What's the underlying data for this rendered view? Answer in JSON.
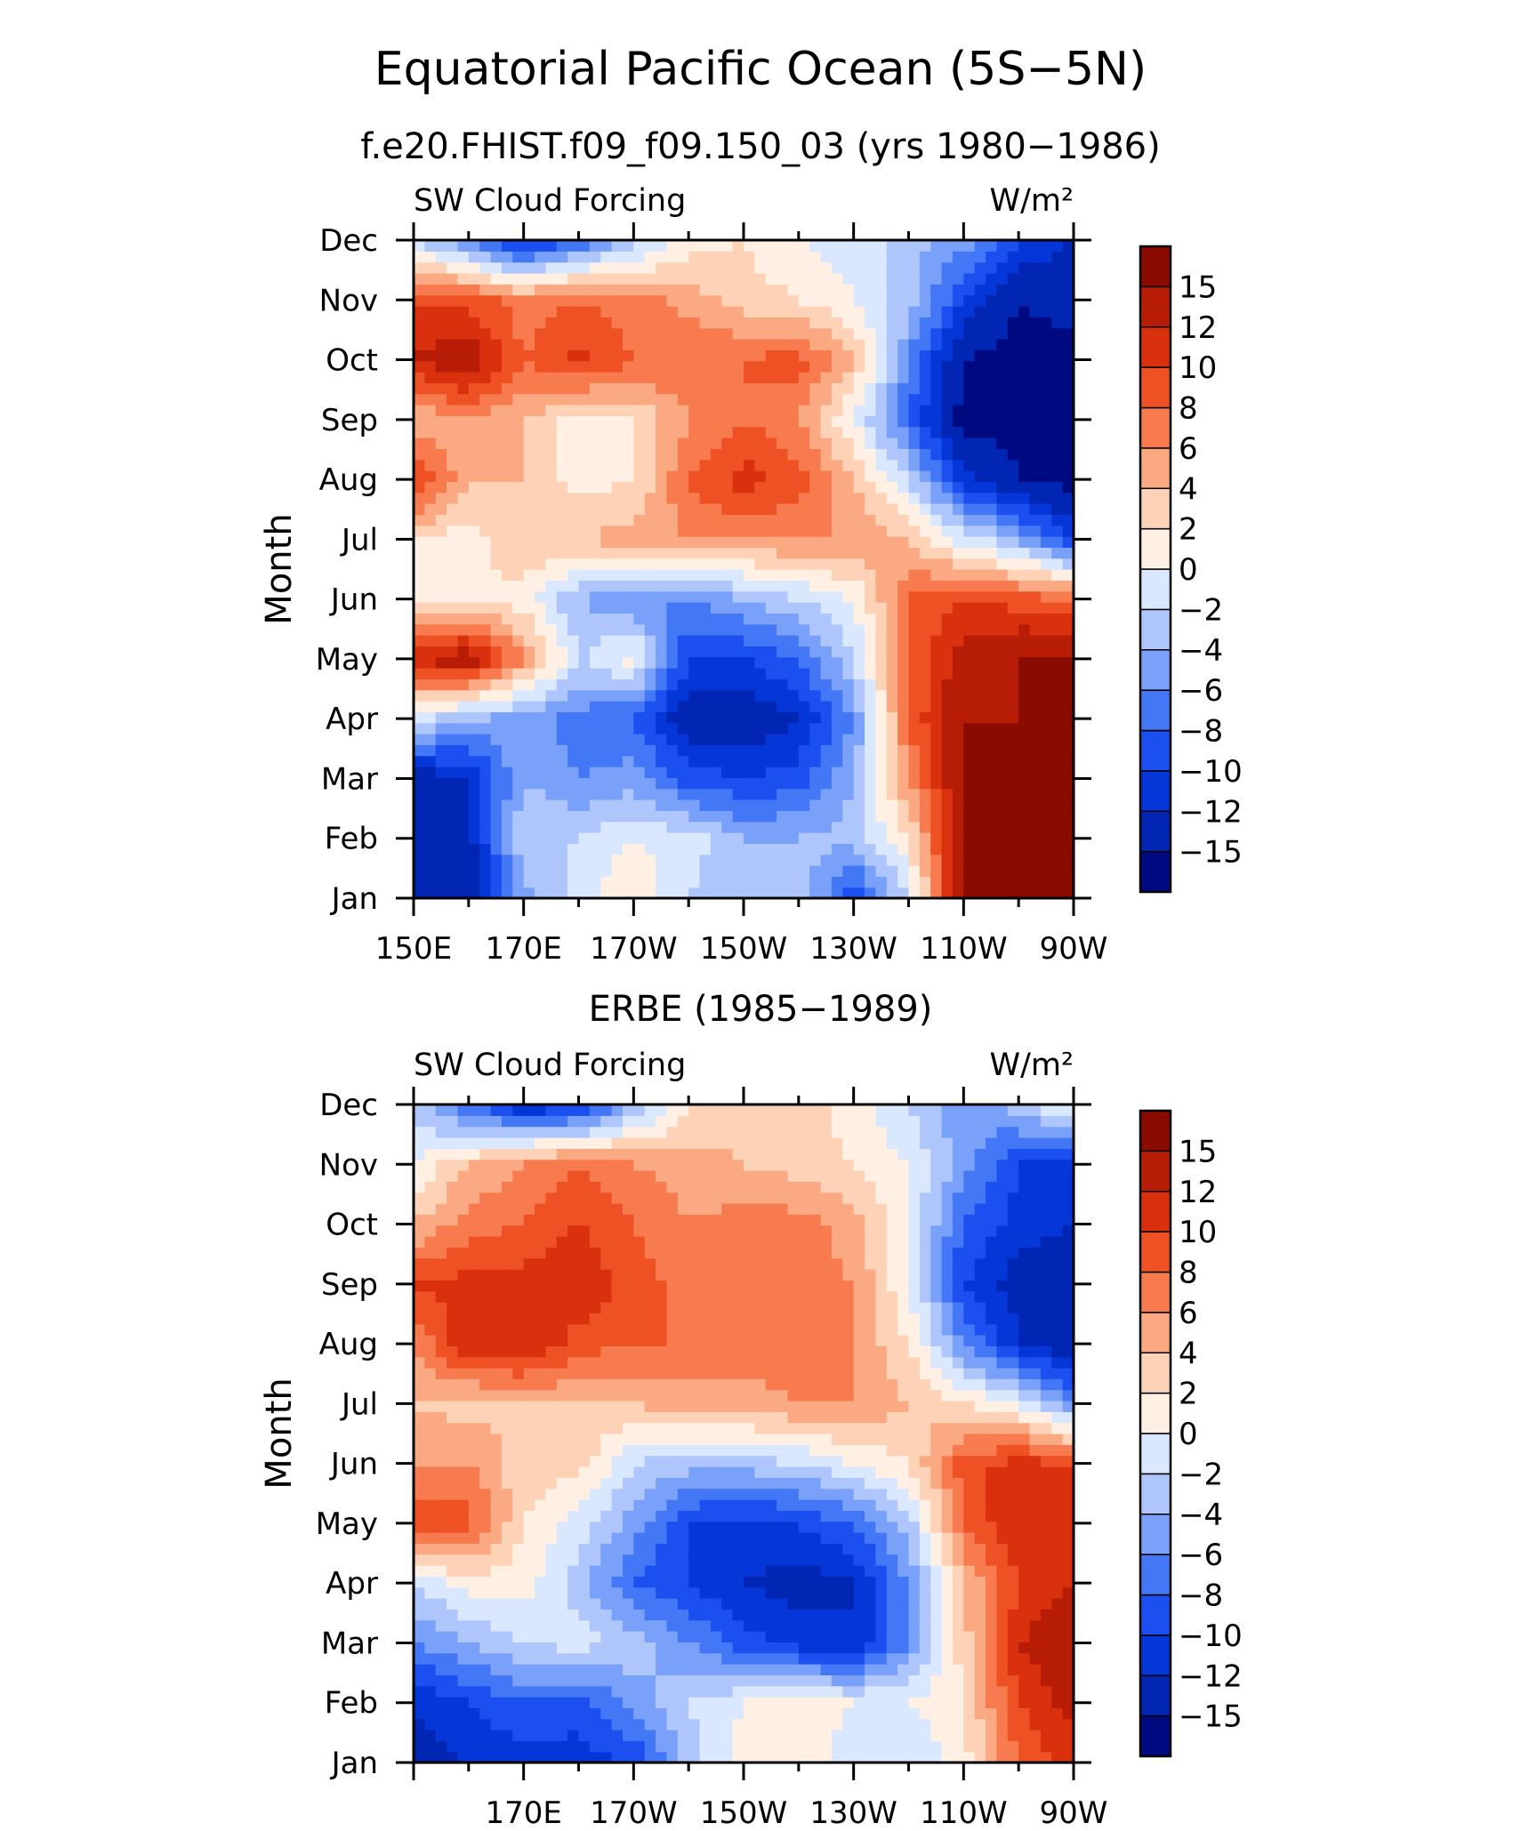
{
  "title": "Equatorial Pacific Ocean (5S−5N)",
  "chart_data": [
    {
      "type": "heatmap",
      "subtitle": "f.e20.FHIST.f09_f09.150_03 (yrs 1980−1986)",
      "left_label": "SW Cloud Forcing",
      "units": "W/m²",
      "ylabel": "Month",
      "x_tick_labels": [
        "150E",
        "170E",
        "170W",
        "150W",
        "130W",
        "110W",
        "90W"
      ],
      "y_tick_labels": [
        "Jan",
        "Feb",
        "Mar",
        "Apr",
        "May",
        "Jun",
        "Jul",
        "Aug",
        "Sep",
        "Oct",
        "Nov",
        "Dec"
      ],
      "xlim": [
        150,
        270
      ],
      "x_label_values": [
        150,
        170,
        190,
        210,
        230,
        250,
        270
      ],
      "colorbar_labels": [
        "−15",
        "−12",
        "−10",
        "−8",
        "−6",
        "−4",
        "−2",
        "0",
        "2",
        "4",
        "6",
        "8",
        "10",
        "12",
        "15"
      ],
      "x": [
        150,
        160,
        170,
        180,
        190,
        200,
        210,
        220,
        230,
        240,
        250,
        260,
        270
      ],
      "values": [
        [
          -15,
          -15,
          -5,
          -1,
          2,
          -2,
          -3,
          -2,
          -10,
          -2,
          15,
          15,
          15
        ],
        [
          -14,
          -13,
          -2,
          -2,
          0,
          -1,
          -4,
          -4,
          -3,
          2,
          15,
          15,
          15
        ],
        [
          -14,
          -12,
          -4,
          -6,
          -5,
          -9,
          -10,
          -9,
          -4,
          6,
          15,
          15,
          15
        ],
        [
          -1,
          -4,
          -5,
          -7,
          -8,
          -14,
          -14,
          -12,
          -6,
          8,
          15,
          15,
          15
        ],
        [
          12,
          14,
          6,
          -2,
          1,
          -10,
          -10,
          -8,
          -2,
          8,
          13,
          15,
          15
        ],
        [
          2,
          2,
          1,
          -4,
          -6,
          -6,
          -4,
          -2,
          0,
          8,
          10,
          9,
          8
        ],
        [
          2,
          1,
          4,
          4,
          5,
          6,
          6,
          6,
          6,
          4,
          -1,
          -4,
          -10
        ],
        [
          11,
          4,
          4,
          1,
          2,
          8,
          11,
          9,
          4,
          -2,
          -11,
          -15,
          -16
        ],
        [
          4,
          6,
          4,
          1,
          2,
          6,
          8,
          6,
          0,
          -8,
          -16,
          -16,
          -16
        ],
        [
          12,
          14,
          8,
          11,
          8,
          8,
          8,
          9,
          4,
          -6,
          -15,
          -16,
          -16
        ],
        [
          10,
          9,
          7,
          8,
          7,
          5,
          3,
          2,
          0,
          -3,
          -10,
          -15,
          -14
        ],
        [
          -2,
          -6,
          -12,
          -8,
          -3,
          1,
          2,
          0,
          -1,
          -3,
          -5,
          -10,
          -12
        ]
      ]
    },
    {
      "type": "heatmap",
      "subtitle": "ERBE (1985−1989)",
      "left_label": "SW Cloud Forcing",
      "units": "W/m²",
      "ylabel": "Month",
      "x_tick_labels": [
        "170E",
        "170W",
        "150W",
        "130W",
        "110W",
        "90W"
      ],
      "y_tick_labels": [
        "Jan",
        "Feb",
        "Mar",
        "Apr",
        "May",
        "Jun",
        "Jul",
        "Aug",
        "Sep",
        "Oct",
        "Nov",
        "Dec"
      ],
      "xlim": [
        150,
        270
      ],
      "x_label_values": [
        170,
        190,
        210,
        230,
        250,
        270
      ],
      "colorbar_labels": [
        "−15",
        "−12",
        "−10",
        "−8",
        "−6",
        "−4",
        "−2",
        "0",
        "2",
        "4",
        "6",
        "8",
        "10",
        "12",
        "15"
      ],
      "x": [
        150,
        160,
        170,
        180,
        190,
        200,
        210,
        220,
        230,
        240,
        250,
        260,
        270
      ],
      "values": [
        [
          -13,
          -12,
          -11,
          -11,
          -10,
          -3,
          1,
          1,
          -1,
          -2,
          1,
          8,
          11
        ],
        [
          -12,
          -10,
          -8,
          -9,
          -5,
          -2,
          0,
          1,
          0,
          0,
          2,
          10,
          13
        ],
        [
          -6,
          -4,
          -2,
          -1,
          -3,
          -6,
          -9,
          -11,
          -12,
          -6,
          3,
          12,
          14
        ],
        [
          -2,
          1,
          1,
          -3,
          -8,
          -10,
          -12,
          -13,
          -12,
          -6,
          4,
          10,
          12
        ],
        [
          10,
          9,
          2,
          -1,
          -5,
          -10,
          -11,
          -10,
          -8,
          -3,
          8,
          12,
          12
        ],
        [
          6,
          6,
          3,
          3,
          -2,
          -3,
          -3,
          -2,
          0,
          2,
          9,
          11,
          10
        ],
        [
          4,
          3,
          4,
          4,
          4,
          5,
          5,
          6,
          6,
          4,
          2,
          0,
          -6
        ],
        [
          6,
          12,
          12,
          9,
          8,
          8,
          7,
          8,
          6,
          2,
          -6,
          -12,
          -14
        ],
        [
          10,
          11,
          11,
          12,
          9,
          7,
          7,
          7,
          6,
          0,
          -10,
          -13,
          -14
        ],
        [
          4,
          7,
          8,
          10,
          8,
          6,
          7,
          7,
          5,
          0,
          -8,
          -11,
          -12
        ],
        [
          0,
          4,
          6,
          8,
          6,
          5,
          4,
          3,
          2,
          0,
          -5,
          -10,
          -10
        ],
        [
          -3,
          -8,
          -12,
          -11,
          -4,
          2,
          3,
          3,
          1,
          -2,
          -6,
          -3,
          1
        ]
      ]
    }
  ],
  "colors": {
    "levels": [
      -15,
      -12,
      -10,
      -8,
      -6,
      -4,
      -2,
      0,
      2,
      4,
      6,
      8,
      10,
      12,
      15
    ],
    "palette": [
      "#000a80",
      "#0026b3",
      "#0536d8",
      "#1b4ff0",
      "#4477f6",
      "#7aa1f9",
      "#aec6fb",
      "#d9e8fe",
      "#fff0e3",
      "#fdd2b6",
      "#fba982",
      "#f77b4e",
      "#ee5124",
      "#d9300e",
      "#b71c06",
      "#8a0b00"
    ]
  }
}
